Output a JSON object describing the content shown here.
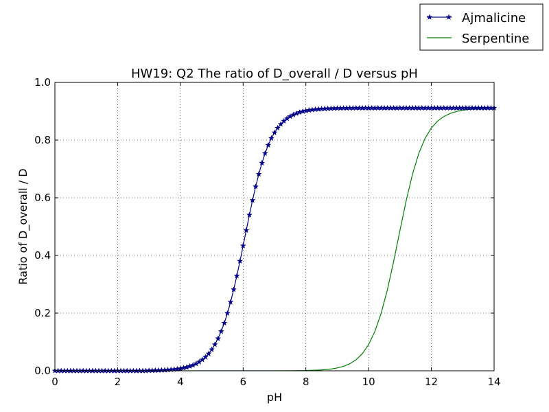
{
  "chart_data": {
    "type": "line",
    "title": "HW19: Q2 The ratio of D_overall / D versus pH",
    "xlabel": "pH",
    "ylabel": "Ratio of D_overall / D",
    "xlim": [
      0,
      14
    ],
    "ylim": [
      0,
      1
    ],
    "xticks": [
      "0",
      "2",
      "4",
      "6",
      "8",
      "10",
      "12",
      "14"
    ],
    "yticks": [
      "0.0",
      "0.2",
      "0.4",
      "0.6",
      "0.8",
      "1.0"
    ],
    "grid": true,
    "legend_position": "top-right, outside plot",
    "series": [
      {
        "name": "Ajmalicine",
        "color": "#00008b",
        "marker": "star",
        "x": [
          0.0,
          0.1,
          0.2,
          0.3,
          0.4,
          0.5,
          0.6,
          0.7,
          0.8,
          0.9,
          1.0,
          1.1,
          1.2,
          1.3,
          1.4,
          1.5,
          1.6,
          1.7,
          1.8,
          1.9,
          2.0,
          2.1,
          2.2,
          2.3,
          2.4,
          2.5,
          2.6,
          2.7,
          2.8,
          2.9,
          3.0,
          3.1,
          3.2,
          3.3,
          3.4,
          3.5,
          3.6,
          3.7,
          3.8,
          3.9,
          4.0,
          4.1,
          4.2,
          4.3,
          4.4,
          4.5,
          4.6,
          4.7,
          4.8,
          4.9,
          5.0,
          5.1,
          5.2,
          5.3,
          5.4,
          5.5,
          5.6,
          5.7,
          5.8,
          5.9,
          6.0,
          6.1,
          6.2,
          6.3,
          6.4,
          6.5,
          6.6,
          6.7,
          6.8,
          6.9,
          7.0,
          7.1,
          7.2,
          7.3,
          7.4,
          7.5,
          7.6,
          7.7,
          7.8,
          7.9,
          8.0,
          8.1,
          8.2,
          8.3,
          8.4,
          8.5,
          8.6,
          8.7,
          8.8,
          8.9,
          9.0,
          9.1,
          9.2,
          9.3,
          9.4,
          9.5,
          9.6,
          9.7,
          9.8,
          9.9,
          10.0,
          10.1,
          10.2,
          10.3,
          10.4,
          10.5,
          10.6,
          10.7,
          10.8,
          10.9,
          11.0,
          11.1,
          11.2,
          11.3,
          11.4,
          11.5,
          11.6,
          11.7,
          11.8,
          11.9,
          12.0,
          12.1,
          12.2,
          12.3,
          12.4,
          12.5,
          12.6,
          12.7,
          12.8,
          12.9,
          13.0,
          13.1,
          13.2,
          13.3,
          13.4,
          13.5,
          13.6,
          13.7,
          13.8,
          13.9,
          14.0
        ],
        "y": [
          0.0,
          0.0,
          0.0,
          0.0,
          0.0,
          0.0,
          0.0,
          0.0,
          0.0,
          0.0,
          0.0,
          0.0,
          0.0,
          0.0,
          0.0,
          0.0,
          0.0,
          0.0,
          0.0,
          0.0,
          0.0,
          0.0,
          0.0,
          0.0,
          0.0,
          0.0,
          0.0,
          0.0,
          0.0,
          0.0,
          0.0008,
          0.001,
          0.0013,
          0.0016,
          0.002,
          0.0025,
          0.0032,
          0.004,
          0.005,
          0.0063,
          0.0079,
          0.0099,
          0.0124,
          0.0156,
          0.0195,
          0.0245,
          0.0307,
          0.0383,
          0.0478,
          0.0594,
          0.0737,
          0.091,
          0.1118,
          0.1366,
          0.1657,
          0.1995,
          0.2383,
          0.2817,
          0.3293,
          0.3803,
          0.4334,
          0.4872,
          0.5403,
          0.5912,
          0.6387,
          0.6821,
          0.7206,
          0.7541,
          0.7826,
          0.8063,
          0.8258,
          0.8419,
          0.8551,
          0.8659,
          0.8747,
          0.8819,
          0.8877,
          0.8924,
          0.8962,
          0.8992,
          0.9016,
          0.9035,
          0.905,
          0.9063,
          0.9073,
          0.9081,
          0.9088,
          0.9093,
          0.9097,
          0.9101,
          0.9103,
          0.9105,
          0.9107,
          0.9108,
          0.9109,
          0.911,
          0.9111,
          0.9111,
          0.9112,
          0.9112,
          0.9112,
          0.9112,
          0.9112,
          0.9112,
          0.9112,
          0.9112,
          0.9112,
          0.9112,
          0.9112,
          0.9112,
          0.9112,
          0.9112,
          0.9112,
          0.9112,
          0.9112,
          0.9112,
          0.9112,
          0.9112,
          0.9112,
          0.9112,
          0.9112,
          0.9112,
          0.9112,
          0.9112,
          0.9112,
          0.9112,
          0.9112,
          0.9112,
          0.9112,
          0.9112,
          0.9112,
          0.9112,
          0.9112,
          0.9112,
          0.9112,
          0.9112,
          0.9112,
          0.9112,
          0.9112,
          0.9112,
          0.9112
        ]
      },
      {
        "name": "Serpentine",
        "color": "#008000",
        "marker": "none",
        "x": [
          0.0,
          7.0,
          7.5,
          8.0,
          8.5,
          8.8,
          9.0,
          9.2,
          9.4,
          9.6,
          9.8,
          10.0,
          10.2,
          10.4,
          10.6,
          10.8,
          11.0,
          11.2,
          11.4,
          11.6,
          11.8,
          12.0,
          12.2,
          12.4,
          12.6,
          12.8,
          13.0,
          13.2,
          13.4,
          13.6,
          13.8,
          14.0
        ],
        "y": [
          0.0,
          0.0,
          0.0003,
          0.001,
          0.003,
          0.006,
          0.0099,
          0.0156,
          0.0245,
          0.0383,
          0.0594,
          0.091,
          0.1366,
          0.1995,
          0.2817,
          0.3803,
          0.4872,
          0.5912,
          0.6821,
          0.7541,
          0.8063,
          0.8419,
          0.8659,
          0.8819,
          0.8924,
          0.8992,
          0.9035,
          0.9063,
          0.9081,
          0.9093,
          0.9101,
          0.9105
        ]
      }
    ]
  }
}
